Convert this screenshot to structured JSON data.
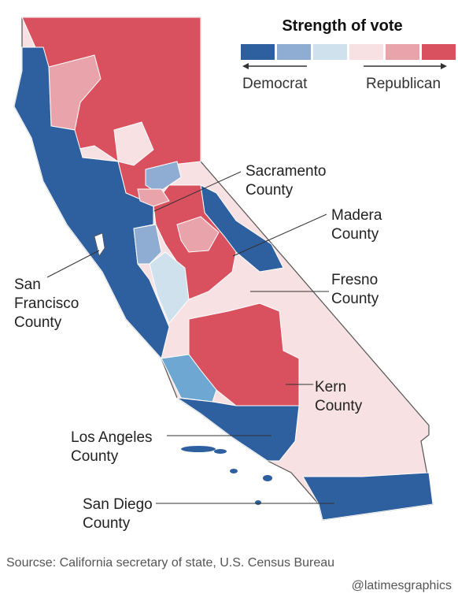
{
  "legend": {
    "title": "Strength of vote",
    "left_label": "Democrat",
    "right_label": "Republican",
    "swatches": [
      {
        "color": "#2e5f9e",
        "meaning": "strong-democrat"
      },
      {
        "color": "#8fadd2",
        "meaning": "moderate-democrat"
      },
      {
        "color": "#cfe1ec",
        "meaning": "lean-democrat"
      },
      {
        "color": "#f7e1e3",
        "meaning": "lean-republican"
      },
      {
        "color": "#e9a3aa",
        "meaning": "moderate-republican"
      },
      {
        "color": "#d9505e",
        "meaning": "strong-republican"
      }
    ]
  },
  "callouts": {
    "sacramento": [
      "Sacramento",
      "County"
    ],
    "madera": [
      "Madera",
      "County"
    ],
    "fresno": [
      "Fresno",
      "County"
    ],
    "san_francisco": [
      "San",
      "Francisco",
      "County"
    ],
    "kern": [
      "Kern",
      "County"
    ],
    "los_angeles": [
      "Los Angeles",
      "County"
    ],
    "san_diego": [
      "San Diego",
      "County"
    ]
  },
  "footer": {
    "source": "Sourcse: California secretary of state, U.S. Census Bureau",
    "credit": "@latimesgraphics"
  }
}
